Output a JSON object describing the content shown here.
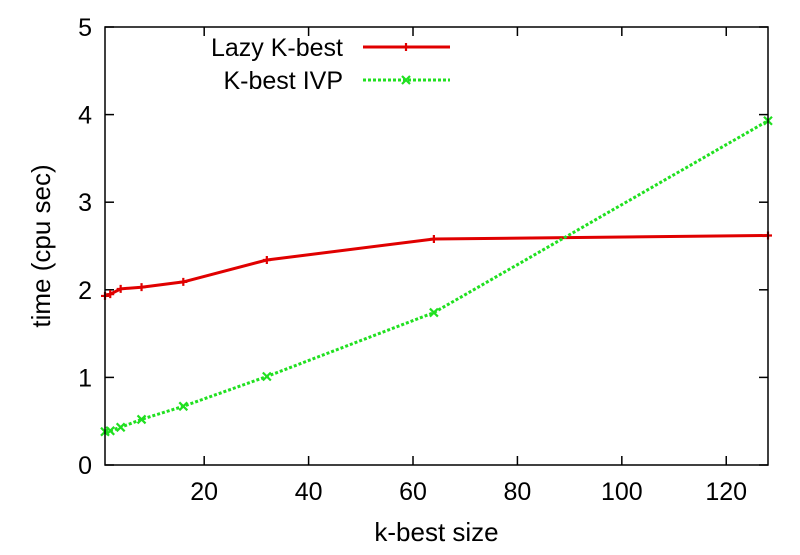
{
  "chart_data": {
    "type": "line",
    "title": "",
    "xlabel": "k-best size",
    "ylabel": "time (cpu sec)",
    "xlim": [
      1,
      128
    ],
    "ylim": [
      0,
      5
    ],
    "xticks": [
      20,
      40,
      60,
      80,
      100,
      120
    ],
    "yticks": [
      0,
      1,
      2,
      3,
      4,
      5
    ],
    "grid": false,
    "legend": "top-left",
    "series": [
      {
        "name": "Lazy K-best",
        "color": "#e00000",
        "style": "solid",
        "marker": "plus",
        "x": [
          1,
          2,
          4,
          8,
          16,
          32,
          64,
          128
        ],
        "y": [
          1.93,
          1.95,
          2.01,
          2.03,
          2.09,
          2.34,
          2.58,
          2.62
        ]
      },
      {
        "name": "K-best IVP",
        "color": "#20e020",
        "style": "dotted",
        "marker": "cross",
        "x": [
          1,
          2,
          4,
          8,
          16,
          32,
          64,
          128
        ],
        "y": [
          0.38,
          0.39,
          0.43,
          0.52,
          0.67,
          1.01,
          1.74,
          3.93
        ]
      }
    ]
  }
}
